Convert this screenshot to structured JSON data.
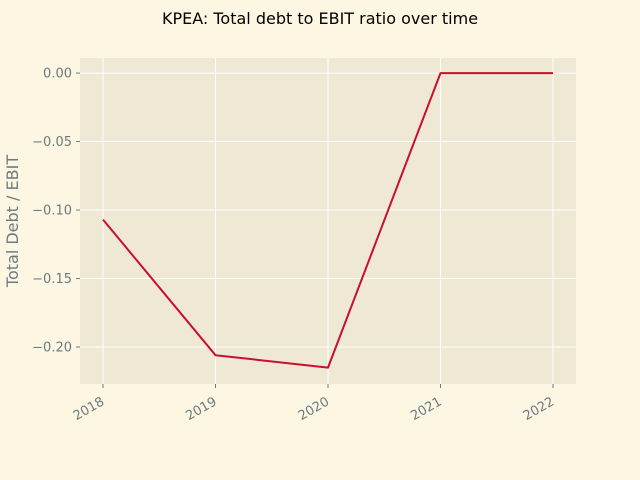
{
  "chart_data": {
    "type": "line",
    "title": "KPEA: Total debt to EBIT ratio over time",
    "xlabel": "",
    "ylabel": "Total Debt / EBIT",
    "categories": [
      "2018",
      "2019",
      "2020",
      "2021",
      "2022"
    ],
    "series": [
      {
        "values": [
          -0.107,
          -0.206,
          -0.215,
          0.0,
          0.0
        ]
      }
    ],
    "ylim": [
      -0.227,
      0.011
    ],
    "yticks": [
      0.0,
      -0.05,
      -0.1,
      -0.15,
      -0.2
    ],
    "ytick_labels": [
      "0.00",
      "−0.05",
      "−0.10",
      "−0.15",
      "−0.20"
    ],
    "grid": true,
    "legend": "none",
    "colors": {
      "background": "#fdf6e3",
      "plot_area": "#eee8d5",
      "grid": "#ffffff",
      "line": "#c8102e",
      "text": "#6b7b80"
    }
  }
}
